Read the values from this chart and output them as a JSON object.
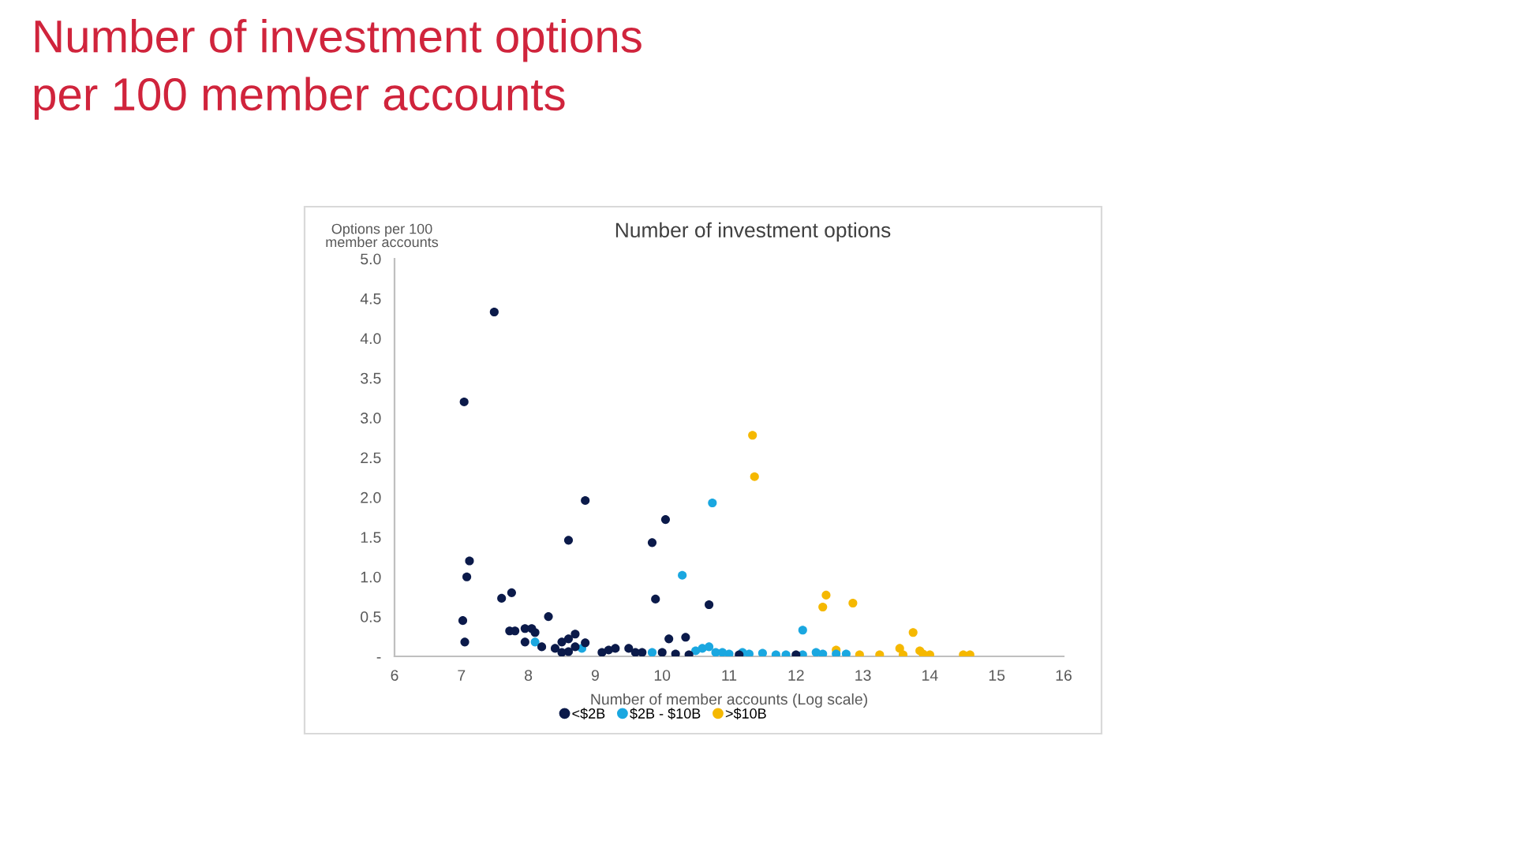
{
  "chart_data": {
    "type": "scatter",
    "title": "Number of investment options\nper 100 member accounts",
    "subtitle": "Number of investment options",
    "xlabel": "Number of member accounts (Log scale)",
    "ylabel": "Options per 100\nmember accounts",
    "xlim": [
      6,
      16
    ],
    "xticks": [
      6,
      7,
      8,
      9,
      10,
      11,
      12,
      13,
      14,
      15,
      16
    ],
    "ylim": [
      0,
      5
    ],
    "yticks": [
      {
        "value": 0,
        "label": "-"
      },
      {
        "value": 0.5,
        "label": "0.5"
      },
      {
        "value": 1,
        "label": "1.0"
      },
      {
        "value": 1.5,
        "label": "1.5"
      },
      {
        "value": 2,
        "label": "2.0"
      },
      {
        "value": 2.5,
        "label": "2.5"
      },
      {
        "value": 3,
        "label": "3.0"
      },
      {
        "value": 3.5,
        "label": "3.5"
      },
      {
        "value": 4,
        "label": "4.0"
      },
      {
        "value": 4.5,
        "label": "4.5"
      },
      {
        "value": 5,
        "label": "5.0"
      }
    ],
    "grid": false,
    "legend": "bottom",
    "marker": "circle",
    "series": [
      {
        "name": "<$2B",
        "color": "#0b1a4a",
        "x": [
          7.04,
          7.49,
          7.02,
          7.05,
          7.08,
          7.12,
          7.6,
          7.75,
          7.72,
          7.8,
          7.95,
          8.05,
          8.1,
          7.95,
          8.3,
          8.2,
          8.6,
          8.85,
          8.5,
          8.6,
          8.7,
          8.6,
          8.5,
          8.7,
          8.85,
          8.4,
          9.1,
          9.2,
          9.3,
          9.5,
          9.6,
          9.85,
          9.9,
          10.05,
          10.1,
          10.35,
          10.7,
          10.0,
          10.2,
          10.4,
          12.0,
          11.15,
          9.7
        ],
        "values": [
          3.2,
          4.33,
          0.45,
          0.18,
          1.0,
          1.2,
          0.73,
          0.8,
          0.32,
          0.32,
          0.35,
          0.35,
          0.3,
          0.18,
          0.5,
          0.12,
          1.46,
          1.96,
          0.18,
          0.22,
          0.28,
          0.06,
          0.05,
          0.12,
          0.17,
          0.1,
          0.05,
          0.08,
          0.1,
          0.1,
          0.05,
          1.43,
          0.72,
          1.72,
          0.22,
          0.24,
          0.65,
          0.05,
          0.03,
          0.02,
          0.02,
          0.02,
          0.05
        ]
      },
      {
        "name": "$2B - $10B",
        "color": "#1aa7e0",
        "x": [
          8.1,
          8.8,
          9.85,
          10.3,
          10.75,
          12.1,
          10.5,
          10.6,
          10.7,
          10.8,
          11.0,
          11.3,
          11.5,
          11.7,
          11.85,
          12.1,
          12.3,
          12.4,
          12.6,
          12.75,
          10.9,
          11.2
        ],
        "values": [
          0.18,
          0.1,
          0.05,
          1.02,
          1.93,
          0.33,
          0.07,
          0.1,
          0.12,
          0.05,
          0.03,
          0.03,
          0.04,
          0.02,
          0.02,
          0.02,
          0.05,
          0.03,
          0.03,
          0.03,
          0.05,
          0.05
        ]
      },
      {
        "name": ">$10B",
        "color": "#f5b800",
        "x": [
          11.35,
          11.38,
          12.45,
          12.4,
          12.85,
          13.75,
          12.6,
          12.95,
          13.25,
          13.55,
          13.6,
          13.85,
          13.9,
          14.0,
          14.5,
          14.6
        ],
        "values": [
          2.78,
          2.26,
          0.77,
          0.62,
          0.67,
          0.3,
          0.08,
          0.02,
          0.02,
          0.1,
          0.02,
          0.07,
          0.03,
          0.02,
          0.02,
          0.02
        ]
      }
    ]
  }
}
